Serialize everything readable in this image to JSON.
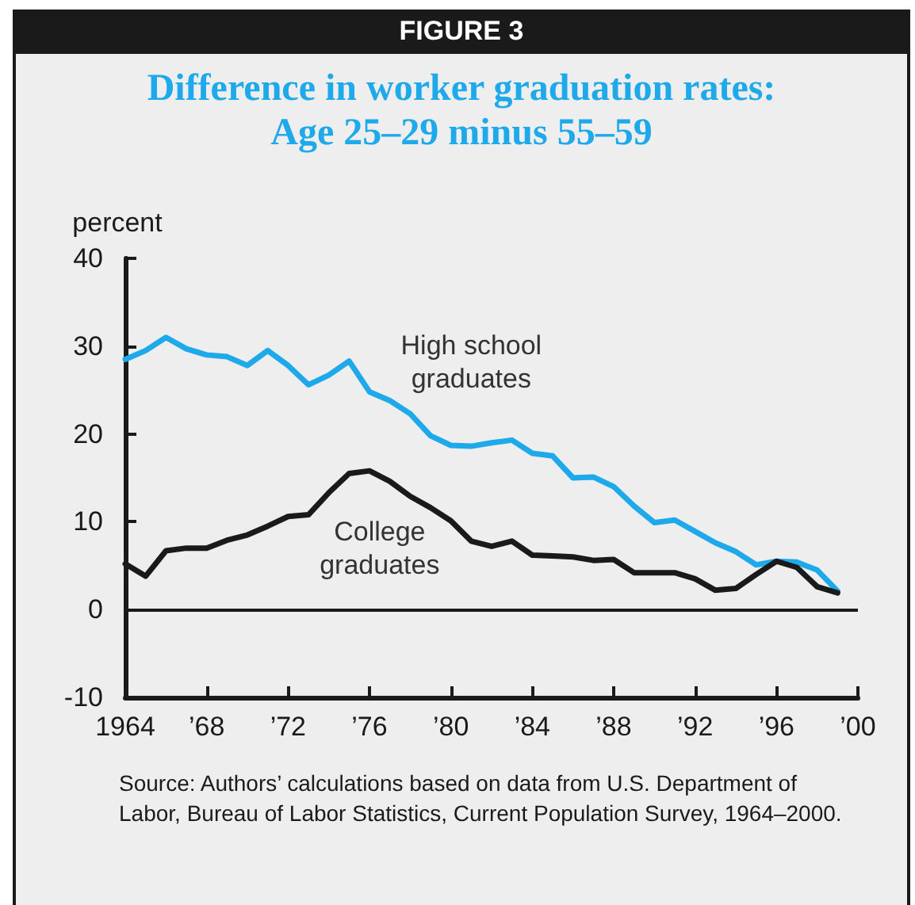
{
  "chart_data": {
    "type": "line",
    "title": "FIGURE 3",
    "subtitle": "Difference in worker graduation rates:\nAge 25–29 minus 55–59",
    "ylabel": "percent",
    "x": [
      1964,
      1965,
      1966,
      1967,
      1968,
      1969,
      1970,
      1971,
      1972,
      1973,
      1974,
      1975,
      1976,
      1977,
      1978,
      1979,
      1980,
      1981,
      1982,
      1983,
      1984,
      1985,
      1986,
      1987,
      1988,
      1989,
      1990,
      1991,
      1992,
      1993,
      1994,
      1995,
      1996,
      1997,
      1998,
      1999
    ],
    "series": [
      {
        "name": "High school\ngraduates",
        "color": "#1eaaea",
        "values": [
          28.5,
          29.5,
          31,
          29.7,
          29,
          28.8,
          27.8,
          29.5,
          27.8,
          25.6,
          26.7,
          28.3,
          24.8,
          23.8,
          22.3,
          19.8,
          18.7,
          18.6,
          19,
          19.3,
          17.8,
          17.5,
          15,
          15.1,
          14,
          11.8,
          9.9,
          10.2,
          8.9,
          7.6,
          6.6,
          5.1,
          5.5,
          5.4,
          4.5,
          2.1
        ]
      },
      {
        "name": "College\ngraduates",
        "color": "#1a1a1a",
        "values": [
          5.2,
          3.8,
          6.7,
          7,
          7,
          7.9,
          8.5,
          9.5,
          10.6,
          10.8,
          13.3,
          15.5,
          15.8,
          14.6,
          12.9,
          11.6,
          10.1,
          7.8,
          7.2,
          7.8,
          6.2,
          6.1,
          6,
          5.6,
          5.7,
          4.2,
          4.2,
          4.2,
          3.5,
          2.2,
          2.4,
          4,
          5.5,
          4.8,
          2.6,
          1.9
        ]
      }
    ],
    "xlim": [
      1964,
      2000
    ],
    "xticks": [
      1964,
      {
        "value": 1968,
        "label": "’68"
      },
      {
        "value": 1972,
        "label": "’72"
      },
      {
        "value": 1976,
        "label": "’76"
      },
      {
        "value": 1980,
        "label": "’80"
      },
      {
        "value": 1984,
        "label": "’84"
      },
      {
        "value": 1988,
        "label": "’88"
      },
      {
        "value": 1992,
        "label": "’92"
      },
      {
        "value": 1996,
        "label": "’96"
      },
      {
        "value": 2000,
        "label": "’00"
      }
    ],
    "ylim": [
      -10,
      40
    ],
    "yticks": [
      -10,
      0,
      10,
      20,
      30,
      40
    ],
    "ref_lines": [
      {
        "axis": "y",
        "value": 0,
        "color": "#1a1a1a"
      }
    ],
    "grid": false,
    "legend": false,
    "marker": "none",
    "line_style": "solid",
    "annotations": [
      "Source: Authors’ calculations based on data from U.S. Department of Labor, Bureau of Labor Statistics, Current Population Survey, 1964–2000."
    ]
  }
}
